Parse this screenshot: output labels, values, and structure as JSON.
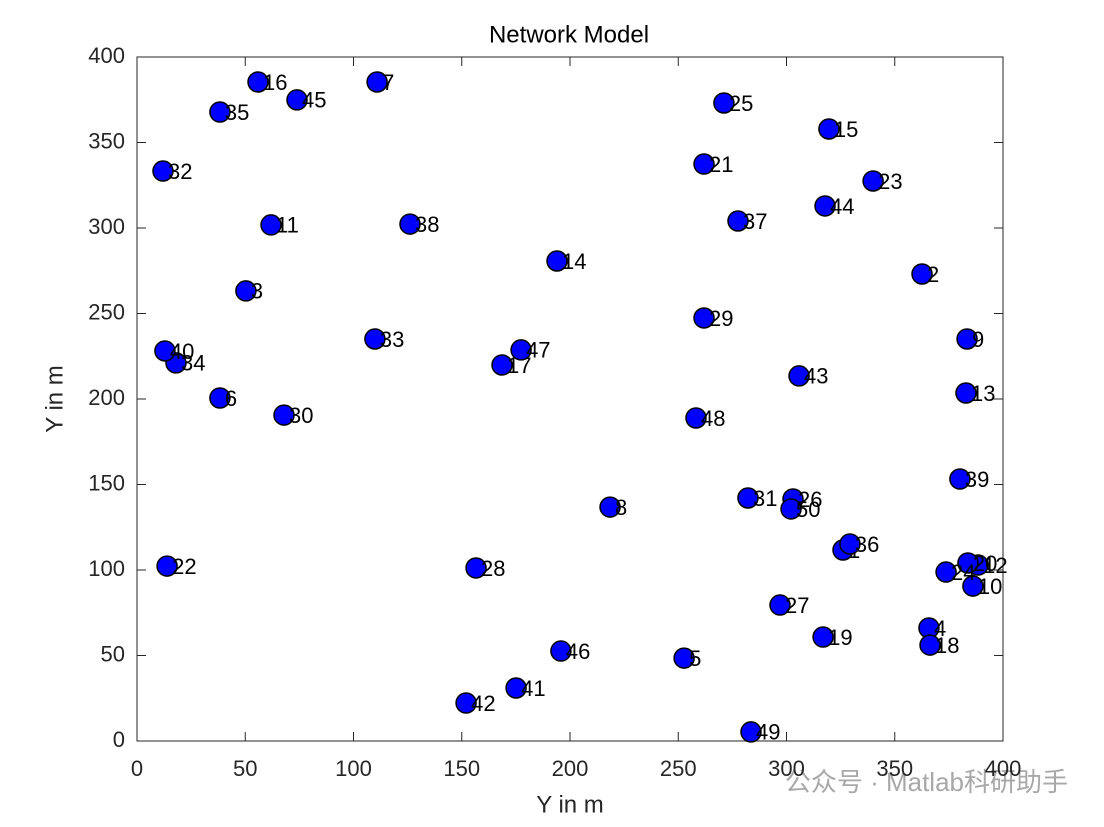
{
  "chart_data": {
    "type": "scatter",
    "title": "Network Model",
    "x_label": "Y in m",
    "y_label": "Y in m",
    "watermark": "公众号 · Matlab科研助手",
    "color": "#0000ff",
    "xlim": [
      0,
      400
    ],
    "ylim": [
      0,
      400
    ],
    "xticks": [
      0,
      50,
      100,
      150,
      200,
      250,
      300,
      350,
      400
    ],
    "yticks": [
      0,
      50,
      100,
      150,
      200,
      250,
      300,
      350,
      400
    ],
    "point_labels": [
      "1",
      "2",
      "3",
      "4",
      "5",
      "6",
      "7",
      "8",
      "9",
      "10",
      "11",
      "12",
      "13",
      "14",
      "15",
      "16",
      "17",
      "18",
      "19",
      "20",
      "21",
      "22",
      "23",
      "24",
      "25",
      "26",
      "27",
      "28",
      "29",
      "30",
      "31",
      "32",
      "33",
      "34",
      "35",
      "36",
      "37",
      "38",
      "39",
      "40",
      "41",
      "42",
      "43",
      "44",
      "45",
      "46",
      "47",
      "48",
      "49",
      "50"
    ],
    "x": [
      326.1,
      362.6,
      50.3,
      365.8,
      252.7,
      38.3,
      110.9,
      218.5,
      383.4,
      386.1,
      61.9,
      388.5,
      382.9,
      194.0,
      319.6,
      55.9,
      168.6,
      366.3,
      316.9,
      383.8,
      261.9,
      13.9,
      340.0,
      373.7,
      271.1,
      303.0,
      297.0,
      156.6,
      261.9,
      67.9,
      282.2,
      12.0,
      109.9,
      18.0,
      38.3,
      329.3,
      277.6,
      126.1,
      380.1,
      12.9,
      175.1,
      152.0,
      305.8,
      317.8,
      73.9,
      195.8,
      177.4,
      258.2,
      283.6,
      302.1
    ],
    "y": [
      111.7,
      273.1,
      263.2,
      66.1,
      48.5,
      200.6,
      385.4,
      136.8,
      235.1,
      90.6,
      301.8,
      102.9,
      203.5,
      280.7,
      357.9,
      385.4,
      219.9,
      56.1,
      60.8,
      104.1,
      337.4,
      102.3,
      327.5,
      98.8,
      373.1,
      141.5,
      79.5,
      101.2,
      247.4,
      190.6,
      142.1,
      333.3,
      235.1,
      221.1,
      367.8,
      115.2,
      304.1,
      302.3,
      153.2,
      228.1,
      31.0,
      22.2,
      213.5,
      312.9,
      374.9,
      52.6,
      228.7,
      188.9,
      5.3,
      135.7
    ]
  }
}
